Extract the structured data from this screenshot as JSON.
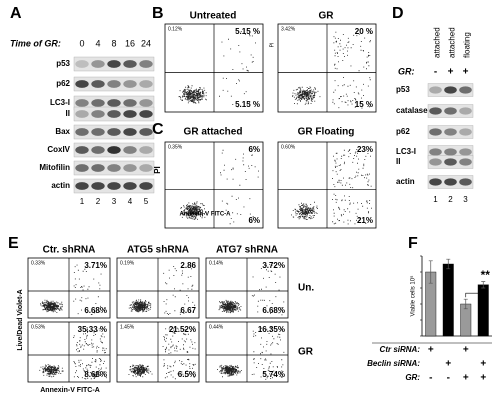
{
  "panel_a": {
    "label": "A",
    "time_label": "Time of GR:",
    "times": [
      "0",
      "4",
      "8",
      "16",
      "24"
    ],
    "rows": [
      "p53",
      "p62",
      "LC3-I",
      "II",
      "Bax",
      "CoxIV",
      "Mitofilin",
      "actin"
    ],
    "lanes": [
      "1",
      "2",
      "3",
      "4",
      "5"
    ]
  },
  "panel_b": {
    "label": "B",
    "y_axis": "PI",
    "plots": [
      {
        "title": "Untreated",
        "corner": "0.12%",
        "upper_right": "5.15 %",
        "lower_right": "5.15 %"
      },
      {
        "title": "GR",
        "corner": "3.42%",
        "upper_right": "20 %",
        "lower_right": "15 %"
      }
    ]
  },
  "panel_c": {
    "label": "C",
    "y_axis": "PI",
    "x_axis": "Annexin-V FITC-A",
    "plots": [
      {
        "title": "GR attached",
        "corner": "0.35%",
        "upper_right": "6%",
        "lower_right": "6%"
      },
      {
        "title": "GR Floating",
        "corner": "0.60%",
        "upper_right": "23%",
        "lower_right": "21%"
      }
    ]
  },
  "panel_d": {
    "label": "D",
    "columns": [
      "attached",
      "attached",
      "floating"
    ],
    "treatment_label": "GR:",
    "treatment": [
      "-",
      "+",
      "+"
    ],
    "rows": [
      "p53",
      "catalase",
      "p62",
      "LC3-I",
      "II",
      "actin"
    ],
    "lanes": [
      "1",
      "2",
      "3"
    ]
  },
  "panel_e": {
    "label": "E",
    "columns": [
      "Ctr. shRNA",
      "ATG5 shRNA",
      "ATG7 shRNA"
    ],
    "rows": [
      "Un.",
      "GR"
    ],
    "y_axis": "Live/Dead Violet-A",
    "x_axis": "Annexin-V FITC-A",
    "plots": [
      [
        {
          "corner": "0.33%",
          "upper_right": "3.71%",
          "lower_right": "6.68%"
        },
        {
          "corner": "0.19%",
          "upper_right": "2.86",
          "lower_right": "6.67"
        },
        {
          "corner": "0.14%",
          "upper_right": "3.72%",
          "lower_right": "6.68%"
        }
      ],
      [
        {
          "corner": "0.53%",
          "upper_right": "35.33 %",
          "lower_right": "8.68%"
        },
        {
          "corner": "1.45%",
          "upper_right": "21.52%",
          "lower_right": "6.5%"
        },
        {
          "corner": "0.44%",
          "upper_right": "16.35%",
          "lower_right": "5.74%"
        }
      ]
    ]
  },
  "panel_f": {
    "label": "F",
    "conditions": [
      {
        "label": "Ctr siRNA:",
        "marks": [
          "+",
          null,
          "+",
          null
        ]
      },
      {
        "label": "Beclin siRNA:",
        "marks": [
          null,
          "+",
          null,
          "+"
        ]
      },
      {
        "label": "GR:",
        "marks": [
          "-",
          "-",
          "+",
          "+"
        ]
      }
    ]
  },
  "chart_data": {
    "type": "bar",
    "y_label": "Viable cells 10⁵",
    "annotation": "**",
    "values": [
      40,
      45,
      20,
      32
    ],
    "errors": [
      7,
      3,
      3,
      2
    ],
    "colors": [
      "#9a9a9a",
      "#000000",
      "#9a9a9a",
      "#000000"
    ],
    "ylim": [
      0,
      50
    ],
    "yticks": [
      0,
      10,
      20,
      30,
      40,
      50
    ]
  }
}
